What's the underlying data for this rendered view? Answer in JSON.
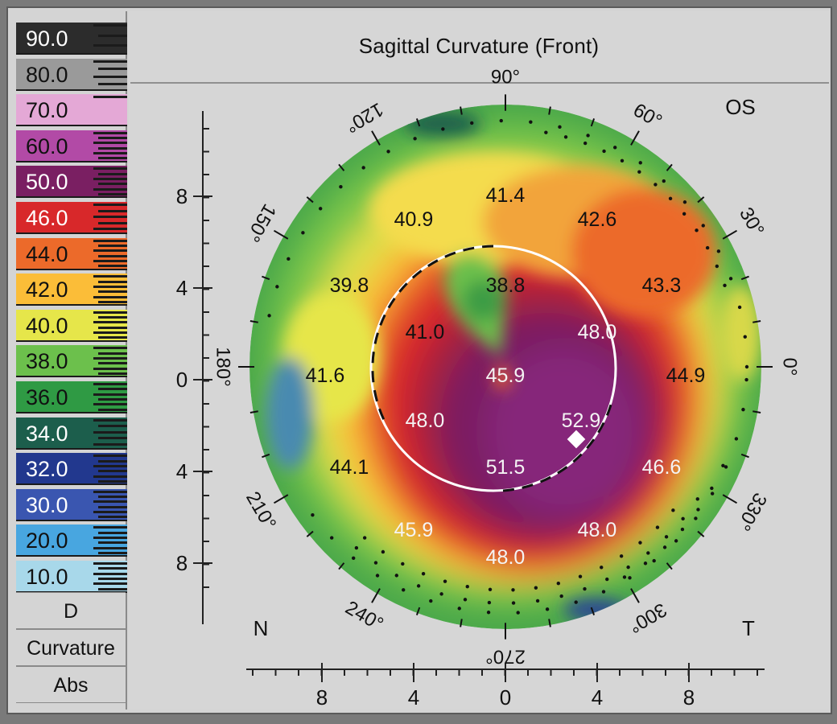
{
  "title": "Sagittal Curvature (Front)",
  "eye": "OS",
  "legend": {
    "scale": [
      {
        "label": "90.0",
        "color": "#2c2c2c",
        "text_color": "#ffffff"
      },
      {
        "label": "80.0",
        "color": "#9a9a9a",
        "text_color": "#111111"
      },
      {
        "label": "70.0",
        "color": "#e4a8d6",
        "text_color": "#111111"
      },
      {
        "label": "60.0",
        "color": "#b24aa6",
        "text_color": "#111111"
      },
      {
        "label": "50.0",
        "color": "#7a1f62",
        "text_color": "#ffffff"
      },
      {
        "label": "46.0",
        "color": "#d8282a",
        "text_color": "#ffffff"
      },
      {
        "label": "44.0",
        "color": "#ec6a2a",
        "text_color": "#111111"
      },
      {
        "label": "42.0",
        "color": "#fbbd38",
        "text_color": "#111111"
      },
      {
        "label": "40.0",
        "color": "#e6e64a",
        "text_color": "#111111"
      },
      {
        "label": "38.0",
        "color": "#6cc04c",
        "text_color": "#111111"
      },
      {
        "label": "36.0",
        "color": "#2f9a44",
        "text_color": "#111111"
      },
      {
        "label": "34.0",
        "color": "#1c5e4c",
        "text_color": "#ffffff"
      },
      {
        "label": "32.0",
        "color": "#22388e",
        "text_color": "#ffffff"
      },
      {
        "label": "30.0",
        "color": "#3a56b0",
        "text_color": "#ffffff"
      },
      {
        "label": "20.0",
        "color": "#48a6e0",
        "text_color": "#111111"
      },
      {
        "label": "10.0",
        "color": "#a8d8ea",
        "text_color": "#111111"
      }
    ],
    "unit": "D",
    "map_type": "Curvature",
    "mode": "Abs"
  },
  "axes": {
    "y_ticks": [
      "8",
      "4",
      "0",
      "4",
      "8"
    ],
    "x_ticks": [
      "8",
      "4",
      "0",
      "4",
      "8"
    ],
    "left_side": "N",
    "right_side": "T"
  },
  "angles": [
    "90°",
    "60°",
    "30°",
    "0°",
    "330°",
    "300°",
    "270°",
    "240°",
    "210°",
    "180°",
    "150°",
    "120°"
  ],
  "readings": [
    {
      "value": "41.4",
      "label_color": "dark"
    },
    {
      "value": "40.9",
      "label_color": "dark"
    },
    {
      "value": "42.6",
      "label_color": "dark"
    },
    {
      "value": "39.8",
      "label_color": "dark"
    },
    {
      "value": "38.8",
      "label_color": "dark"
    },
    {
      "value": "43.3",
      "label_color": "dark"
    },
    {
      "value": "41.0",
      "label_color": "dark"
    },
    {
      "value": "48.0",
      "label_color": "light"
    },
    {
      "value": "41.6",
      "label_color": "dark"
    },
    {
      "value": "45.9",
      "label_color": "light"
    },
    {
      "value": "44.9",
      "label_color": "dark"
    },
    {
      "value": "48.0",
      "label_color": "light"
    },
    {
      "value": "52.9",
      "label_color": "light"
    },
    {
      "value": "44.1",
      "label_color": "dark"
    },
    {
      "value": "51.5",
      "label_color": "light"
    },
    {
      "value": "46.6",
      "label_color": "light"
    },
    {
      "value": "45.9",
      "label_color": "light"
    },
    {
      "value": "48.0",
      "label_color": "light"
    },
    {
      "value": "48.0",
      "label_color": "light"
    }
  ]
}
